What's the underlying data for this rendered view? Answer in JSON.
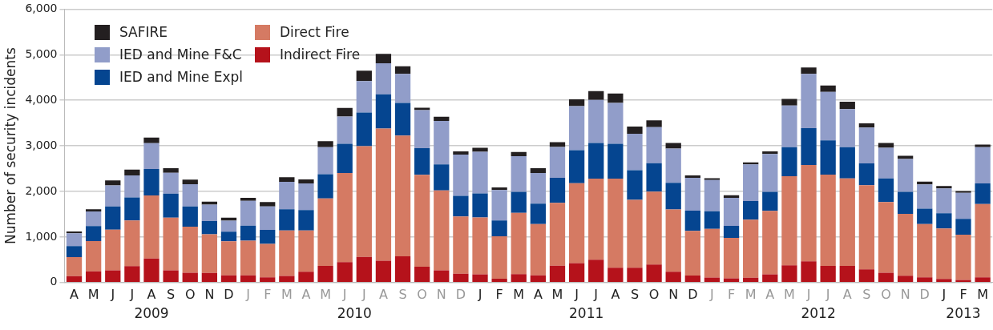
{
  "chart_data": {
    "type": "bar",
    "stacked": true,
    "ylabel": "Number of security incidents",
    "categories": [
      "A",
      "M",
      "J",
      "J",
      "A",
      "S",
      "O",
      "N",
      "D",
      "J",
      "F",
      "M",
      "A",
      "M",
      "J",
      "J",
      "A",
      "S",
      "O",
      "N",
      "D",
      "J",
      "F",
      "M",
      "A",
      "M",
      "J",
      "J",
      "A",
      "S",
      "O",
      "N",
      "D",
      "J",
      "F",
      "M",
      "A",
      "M",
      "J",
      "J",
      "A",
      "S",
      "O",
      "N",
      "D",
      "J",
      "F",
      "M"
    ],
    "annotations": [
      "2009",
      "2010",
      "2011",
      "2012",
      "2013"
    ],
    "ylim": [
      0,
      6000
    ],
    "yticks": [
      {
        "value": 0,
        "label": "0"
      },
      {
        "value": 1000,
        "label": "1,000"
      },
      {
        "value": 2000,
        "label": "2,000"
      },
      {
        "value": 3000,
        "label": "3,000"
      },
      {
        "value": 4000,
        "label": "4,000"
      },
      {
        "value": 5000,
        "label": "5,000"
      },
      {
        "value": 6000,
        "label": "6,000"
      }
    ],
    "grid": "y",
    "legend": "top left",
    "series": [
      {
        "name": "Indirect Fire",
        "color": "#b5121b",
        "values": [
          140,
          245,
          270,
          360,
          530,
          270,
          215,
          210,
          160,
          160,
          115,
          145,
          240,
          365,
          450,
          565,
          480,
          575,
          350,
          270,
          195,
          180,
          85,
          185,
          160,
          370,
          425,
          500,
          325,
          325,
          395,
          240,
          155,
          110,
          95,
          105,
          180,
          380,
          465,
          365,
          365,
          290,
          215,
          150,
          115,
          80,
          60,
          115
        ]
      },
      {
        "name": "Direct Fire",
        "color": "#d57a63",
        "values": [
          420,
          665,
          890,
          1005,
          1380,
          1155,
          1010,
          850,
          745,
          760,
          735,
          1000,
          905,
          1480,
          1955,
          2430,
          2900,
          2650,
          2015,
          1750,
          1255,
          1250,
          930,
          1345,
          1125,
          1380,
          1755,
          1780,
          1955,
          1490,
          1600,
          1365,
          980,
          1070,
          885,
          1275,
          1395,
          1955,
          2115,
          2005,
          1920,
          1845,
          1550,
          1360,
          1170,
          1105,
          990,
          1610
        ]
      },
      {
        "name": "IED and Mine Expl",
        "color": "#054590",
        "values": [
          240,
          330,
          510,
          505,
          580,
          525,
          445,
          290,
          210,
          330,
          305,
          465,
          445,
          535,
          640,
          735,
          750,
          715,
          585,
          575,
          455,
          525,
          350,
          460,
          445,
          550,
          725,
          785,
          765,
          650,
          625,
          585,
          445,
          385,
          265,
          410,
          415,
          635,
          810,
          750,
          685,
          480,
          520,
          480,
          335,
          335,
          350,
          450
        ]
      },
      {
        "name": "IED and Mine F&C",
        "color": "#919dc9",
        "values": [
          280,
          320,
          460,
          480,
          570,
          460,
          490,
          360,
          245,
          545,
          515,
          600,
          585,
          590,
          600,
          690,
          680,
          640,
          835,
          950,
          905,
          915,
          665,
          785,
          675,
          675,
          965,
          945,
          895,
          800,
          790,
          750,
          720,
          685,
          615,
          805,
          830,
          915,
          1190,
          1065,
          835,
          785,
          675,
          720,
          535,
          545,
          570,
          795
        ]
      },
      {
        "name": "SAFIRE",
        "color": "#231f20",
        "values": [
          40,
          50,
          110,
          130,
          120,
          100,
          100,
          65,
          65,
          65,
          95,
          100,
          90,
          135,
          185,
          230,
          210,
          165,
          50,
          95,
          70,
          90,
          60,
          90,
          105,
          105,
          150,
          190,
          210,
          160,
          150,
          125,
          50,
          40,
          55,
          40,
          60,
          145,
          140,
          140,
          165,
          95,
          105,
          70,
          60,
          55,
          40,
          60
        ]
      }
    ]
  }
}
